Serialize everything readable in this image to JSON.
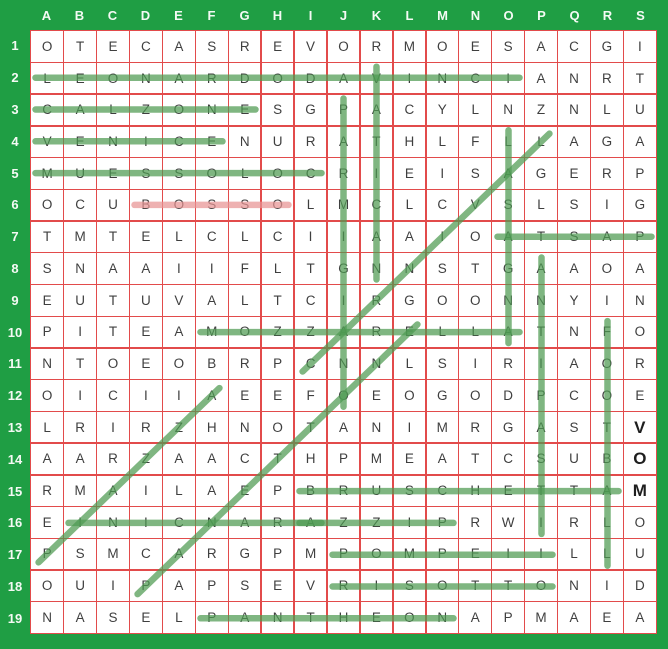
{
  "puzzle": {
    "columns": [
      "A",
      "B",
      "C",
      "D",
      "E",
      "F",
      "G",
      "H",
      "I",
      "J",
      "K",
      "L",
      "M",
      "N",
      "O",
      "P",
      "Q",
      "R",
      "S"
    ],
    "row_numbers": [
      1,
      2,
      3,
      4,
      5,
      6,
      7,
      8,
      9,
      10,
      11,
      12,
      13,
      14,
      15,
      16,
      17,
      18,
      19
    ],
    "rows": [
      "OTECASREVORMOESACGI",
      "LEONARDODAVINCIANRT",
      "CALZONESGPACYLNZNLU",
      "VENICENURATHLFLLAGA",
      "MUESSOLOCRIEISAGERP",
      "OCUBOSSOLMCLCVSLSIG",
      "TMTELCLCIIAAIOATSAP",
      "SNAAIIFLTGNNSTGAAOA",
      "EUTUVALTCIRGOONNYIN",
      "PITEAMOZZARELLATNFO",
      "NTOEOBRPCNNLSIRIAOR",
      "OICIIAEEFOEOGODPCOE",
      "LRIRZHNOTANIMRGASTV",
      "AARZAACTHPMEATCSUBO",
      "RMAILAEPBRUSCHETTAM",
      "EINICNARAZZIPRWIRLO",
      "PSMCARGPMPOMPEIILLU",
      "OUIPAPSEVRISOTTONID",
      "NASELPANTHEONAPMAEA"
    ],
    "bold_cells": [
      "S13",
      "S14",
      "S15"
    ],
    "found_words": [
      {
        "word": "LEONARDO DA VINCI",
        "from": "A2",
        "to": "O2"
      },
      {
        "word": "CALZONE",
        "from": "A3",
        "to": "G3"
      },
      {
        "word": "VENICE",
        "from": "A4",
        "to": "F4"
      },
      {
        "word": "COLOSSEUM",
        "from": "I5",
        "to": "A5"
      },
      {
        "word": "PASTA",
        "from": "S7",
        "to": "O7"
      },
      {
        "word": "MOZZARELLA",
        "from": "F10",
        "to": "O10"
      },
      {
        "word": "BRUSCHETTA",
        "from": "I15",
        "to": "R15"
      },
      {
        "word": "ARANCINI",
        "from": "I16",
        "to": "B16"
      },
      {
        "word": "PIZZA",
        "from": "M16",
        "to": "I16"
      },
      {
        "word": "POMPEII",
        "from": "J17",
        "to": "P17"
      },
      {
        "word": "RISOTTO",
        "from": "J18",
        "to": "P18"
      },
      {
        "word": "PANTHEON",
        "from": "F19",
        "to": "M19"
      },
      {
        "word": "VATICAN",
        "from": "K2",
        "to": "K8"
      },
      {
        "word": "PARMIGIANO",
        "from": "J3",
        "to": "J12"
      },
      {
        "word": "LASAGNA",
        "from": "O4",
        "to": "O10"
      },
      {
        "word": "ANTIPASTI",
        "from": "P8",
        "to": "P16"
      },
      {
        "word": "FOOTBALL",
        "from": "R10",
        "to": "R17"
      },
      {
        "word": "CARNIVAL",
        "from": "I11",
        "to": "P4"
      },
      {
        "word": "PANETTONE",
        "from": "D18",
        "to": "L10"
      },
      {
        "word": "PIAZZA",
        "from": "A17",
        "to": "F12"
      }
    ],
    "incorrect_selections": [
      {
        "selection": "BOSSO",
        "from": "D6",
        "to": "H6"
      }
    ]
  },
  "colors": {
    "background": "#1f9e44",
    "cell_background": "#ffffff",
    "grid_line": "#e24b4b",
    "letter": "#3f3f3f",
    "header_text": "#f4faf4",
    "found_line": "#4e9b52",
    "incorrect_line": "#e89494"
  }
}
